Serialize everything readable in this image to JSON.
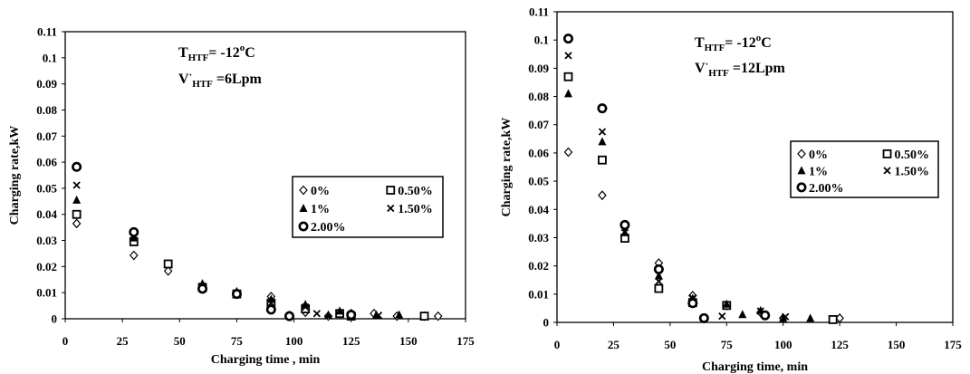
{
  "chart_data": [
    {
      "type": "scatter",
      "title": "",
      "xlabel": "Charging time , min",
      "ylabel": "Charging rate,kW",
      "xlim": [
        0,
        175
      ],
      "ylim": [
        0,
        0.11
      ],
      "xticks": [
        "0",
        "25",
        "50",
        "75",
        "100",
        "125",
        "150",
        "175"
      ],
      "yticks": [
        "0",
        "0.01",
        "0.02",
        "0.03",
        "0.04",
        "0.05",
        "0.06",
        "0.07",
        "0.08",
        "0.09",
        "0.1",
        "0.11"
      ],
      "grid": false,
      "legend_position": "middle-right",
      "annotation": {
        "line1": {
          "var": "T",
          "sub": "HTF",
          "value": "= -12",
          "sup": "o",
          "unit": "C"
        },
        "line2": {
          "var": "V",
          "prime": "·",
          "sub": "HTF",
          "value": " =6Lpm"
        }
      },
      "series": [
        {
          "name": "0%",
          "marker": "diamond",
          "x": [
            5,
            30,
            45,
            60,
            75,
            90,
            98,
            105,
            115,
            120,
            125,
            135,
            145,
            157,
            163
          ],
          "y": [
            0.0365,
            0.0243,
            0.0183,
            0.0115,
            0.0095,
            0.0085,
            0.0013,
            0.0025,
            0.001,
            0.002,
            0.002,
            0.002,
            0.001,
            0.001,
            0.001
          ]
        },
        {
          "name": "0.50%",
          "marker": "square",
          "x": [
            5,
            30,
            45,
            60,
            75,
            90,
            105,
            120,
            125,
            157
          ],
          "y": [
            0.04,
            0.0295,
            0.021,
            0.012,
            0.0095,
            0.006,
            0.0038,
            0.002,
            0.001,
            0.001
          ]
        },
        {
          "name": "1%",
          "marker": "triangle",
          "x": [
            5,
            30,
            60,
            75,
            90,
            105,
            115,
            120,
            136,
            146
          ],
          "y": [
            0.0455,
            0.031,
            0.0135,
            0.0105,
            0.0075,
            0.0055,
            0.0015,
            0.003,
            0.0015,
            0.0015
          ]
        },
        {
          "name": "1.50%",
          "marker": "x",
          "x": [
            5,
            30,
            60,
            75,
            90,
            98,
            105,
            110,
            125,
            137
          ],
          "y": [
            0.0512,
            0.032,
            0.0125,
            0.0098,
            0.006,
            0.001,
            0.0045,
            0.002,
            0.001,
            0.0013
          ]
        },
        {
          "name": "2.00%",
          "marker": "circle",
          "x": [
            5,
            30,
            60,
            75,
            90,
            98,
            125
          ],
          "y": [
            0.0582,
            0.0332,
            0.0115,
            0.0095,
            0.0035,
            0.001,
            0.0015
          ]
        }
      ]
    },
    {
      "type": "scatter",
      "title": "",
      "xlabel": "Charging time, min",
      "ylabel": "Charging rate,kW",
      "xlim": [
        0,
        175
      ],
      "ylim": [
        0,
        0.11
      ],
      "xticks": [
        "0",
        "25",
        "50",
        "75",
        "100",
        "125",
        "150",
        "175"
      ],
      "yticks": [
        "0",
        "0.01",
        "0.02",
        "0.03",
        "0.04",
        "0.05",
        "0.06",
        "0.07",
        "0.08",
        "0.09",
        "0.1",
        "0.11"
      ],
      "grid": false,
      "legend_position": "middle-right",
      "annotation": {
        "line1": {
          "var": "T",
          "sub": "HTF",
          "value": "= -12",
          "sup": "o",
          "unit": "C"
        },
        "line2": {
          "var": "V",
          "prime": "·",
          "sub": "HTF",
          "value": " =12Lpm"
        }
      },
      "series": [
        {
          "name": "0%",
          "marker": "diamond",
          "x": [
            5,
            20,
            30,
            45,
            60,
            75,
            90,
            100,
            125
          ],
          "y": [
            0.0603,
            0.045,
            0.0335,
            0.021,
            0.0095,
            0.006,
            0.0035,
            0.0015,
            0.0015
          ]
        },
        {
          "name": "0.50%",
          "marker": "square",
          "x": [
            5,
            20,
            30,
            45,
            60,
            75,
            122
          ],
          "y": [
            0.087,
            0.0575,
            0.0298,
            0.012,
            0.007,
            0.006,
            0.001
          ]
        },
        {
          "name": "1%",
          "marker": "triangle",
          "x": [
            5,
            20,
            30,
            45,
            60,
            75,
            82,
            90,
            100,
            112
          ],
          "y": [
            0.081,
            0.064,
            0.0318,
            0.0165,
            0.0085,
            0.0065,
            0.0028,
            0.0042,
            0.0015,
            0.0015
          ]
        },
        {
          "name": "1.50%",
          "marker": "x",
          "x": [
            5,
            20,
            30,
            45,
            60,
            73,
            90,
            101
          ],
          "y": [
            0.0945,
            0.0675,
            0.0335,
            0.0145,
            0.0085,
            0.0022,
            0.004,
            0.002
          ]
        },
        {
          "name": "2.00%",
          "marker": "circle",
          "x": [
            5,
            20,
            30,
            45,
            60,
            65,
            92
          ],
          "y": [
            0.1005,
            0.0758,
            0.0345,
            0.0188,
            0.0068,
            0.0015,
            0.0025
          ]
        }
      ]
    }
  ]
}
